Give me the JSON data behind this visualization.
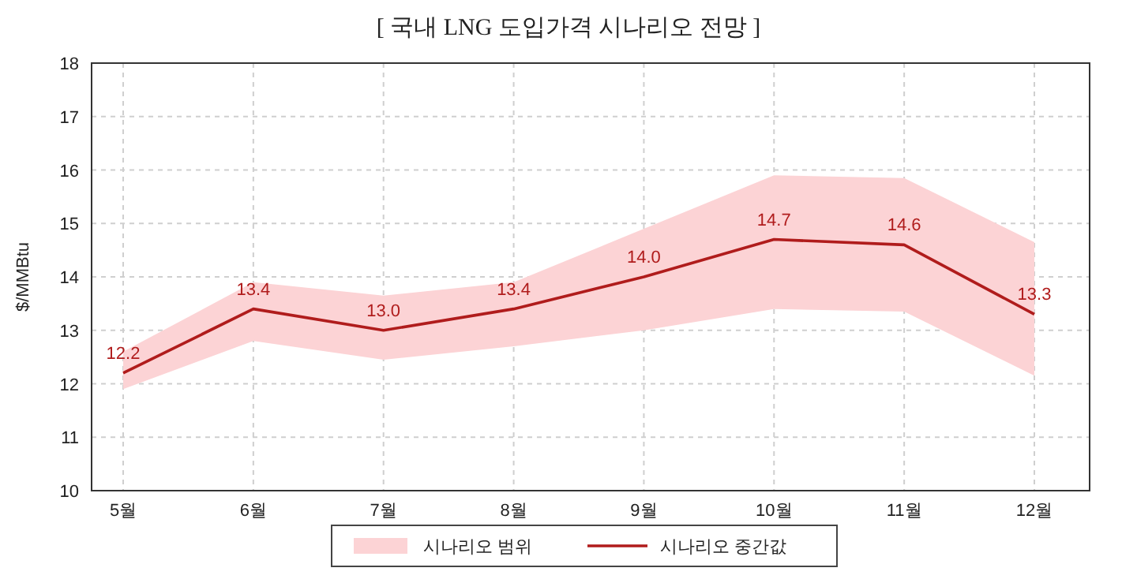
{
  "chart_data": {
    "type": "line",
    "title": "[ 국내 LNG 도입가격 시나리오 전망 ]",
    "ylabel": "$/MMBtu",
    "categories": [
      "5월",
      "6월",
      "7월",
      "8월",
      "9월",
      "10월",
      "11월",
      "12월"
    ],
    "series": [
      {
        "name": "시나리오 중간값",
        "color": "#b01c1c",
        "values": [
          12.2,
          13.4,
          13.0,
          13.4,
          14.0,
          14.7,
          14.6,
          13.3
        ],
        "value_labels": [
          "12.2",
          "13.4",
          "13.0",
          "13.4",
          "14.0",
          "14.7",
          "14.6",
          "13.3"
        ],
        "lower": [
          11.9,
          12.8,
          12.45,
          12.7,
          13.0,
          13.4,
          13.35,
          12.15
        ],
        "upper": [
          12.6,
          13.9,
          13.65,
          13.9,
          14.9,
          15.9,
          15.85,
          14.65
        ]
      }
    ],
    "annotations": [
      "시나리오 범위"
    ],
    "ylim": [
      10,
      18
    ],
    "yticks": [
      10,
      11,
      12,
      13,
      14,
      15,
      16,
      17,
      18
    ],
    "grid": true,
    "legend": "bottom",
    "marker": "none",
    "line_style": "solid"
  }
}
